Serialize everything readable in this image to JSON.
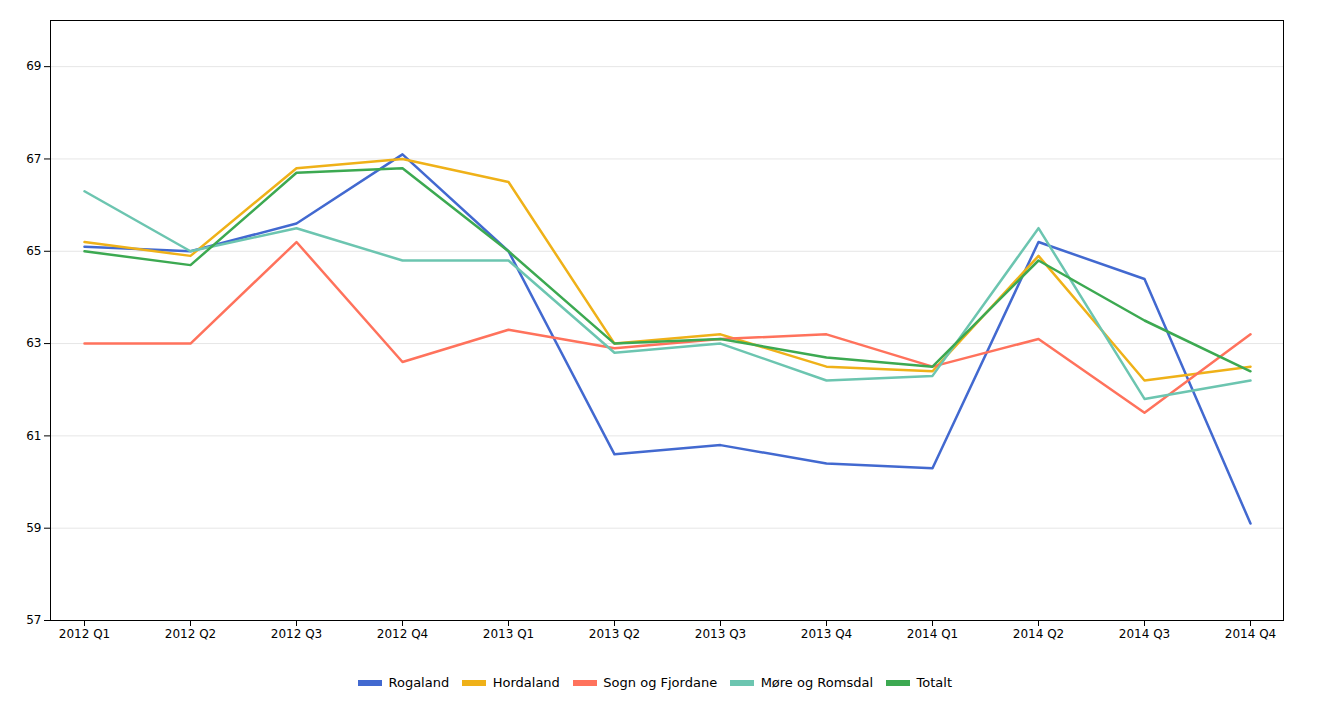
{
  "chart_data": {
    "type": "line",
    "categories": [
      "2012 Q1",
      "2012 Q2",
      "2012 Q3",
      "2012 Q4",
      "2013 Q1",
      "2013 Q2",
      "2013 Q3",
      "2013 Q4",
      "2014 Q1",
      "2014 Q2",
      "2014 Q3",
      "2014 Q4"
    ],
    "series": [
      {
        "name": "Rogaland",
        "values": [
          65.1,
          65.0,
          65.6,
          67.1,
          65.0,
          60.6,
          60.8,
          60.4,
          60.3,
          65.2,
          64.4,
          59.1
        ]
      },
      {
        "name": "Hordaland",
        "values": [
          65.2,
          64.9,
          66.8,
          67.0,
          66.5,
          63.0,
          63.2,
          62.5,
          62.4,
          64.9,
          62.2,
          62.5
        ]
      },
      {
        "name": "Sogn og Fjordane",
        "values": [
          63.0,
          63.0,
          65.2,
          62.6,
          63.3,
          62.9,
          63.1,
          63.2,
          62.5,
          63.1,
          61.5,
          63.2
        ]
      },
      {
        "name": "Møre og Romsdal",
        "values": [
          66.3,
          65.0,
          65.5,
          64.8,
          64.8,
          62.8,
          63.0,
          62.2,
          62.3,
          65.5,
          61.8,
          62.2
        ]
      },
      {
        "name": "Totalt",
        "values": [
          65.0,
          64.7,
          66.7,
          66.8,
          65.0,
          63.0,
          63.1,
          62.7,
          62.5,
          64.8,
          63.5,
          62.4
        ]
      }
    ],
    "ylim": [
      57,
      70
    ],
    "yticks": [
      57,
      59,
      61,
      63,
      65,
      67,
      69
    ],
    "grid": true,
    "legend": "bottom"
  }
}
